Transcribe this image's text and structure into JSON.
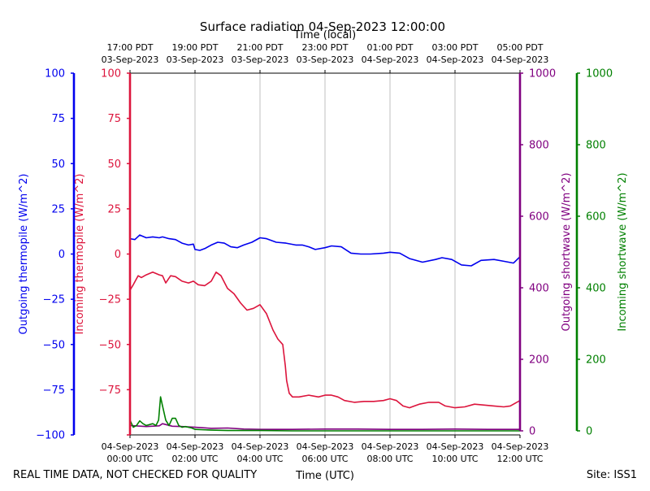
{
  "chart_data": {
    "type": "line",
    "title": "Surface radiation 04-Sep-2023 12:00:00",
    "top_xlabel": "Time (local)",
    "xlabel": "Time (UTC)",
    "footer_left": "REAL TIME DATA, NOT CHECKED FOR QUALITY",
    "footer_right": "Site: ISS1",
    "x_range_hours_utc": [
      0,
      12
    ],
    "grid": "vertical",
    "bottom_ticks": [
      {
        "h": 0,
        "line1": "04-Sep-2023",
        "line2": "00:00 UTC"
      },
      {
        "h": 2,
        "line1": "04-Sep-2023",
        "line2": "02:00 UTC"
      },
      {
        "h": 4,
        "line1": "04-Sep-2023",
        "line2": "04:00 UTC"
      },
      {
        "h": 6,
        "line1": "04-Sep-2023",
        "line2": "06:00 UTC"
      },
      {
        "h": 8,
        "line1": "04-Sep-2023",
        "line2": "08:00 UTC"
      },
      {
        "h": 10,
        "line1": "04-Sep-2023",
        "line2": "10:00 UTC"
      },
      {
        "h": 12,
        "line1": "04-Sep-2023",
        "line2": "12:00 UTC"
      }
    ],
    "top_ticks": [
      {
        "h": 0,
        "line1": "17:00 PDT",
        "line2": "03-Sep-2023"
      },
      {
        "h": 2,
        "line1": "19:00 PDT",
        "line2": "03-Sep-2023"
      },
      {
        "h": 4,
        "line1": "21:00 PDT",
        "line2": "03-Sep-2023"
      },
      {
        "h": 6,
        "line1": "23:00 PDT",
        "line2": "03-Sep-2023"
      },
      {
        "h": 8,
        "line1": "01:00 PDT",
        "line2": "04-Sep-2023"
      },
      {
        "h": 10,
        "line1": "03:00 PDT",
        "line2": "04-Sep-2023"
      },
      {
        "h": 12,
        "line1": "05:00 PDT",
        "line2": "04-Sep-2023"
      }
    ],
    "axes": [
      {
        "id": "outgoing_thermopile",
        "label": "Outgoing thermopile (W/m^2)",
        "color": "#0000ee",
        "ylim": [
          -100,
          100
        ],
        "ticks": [
          -100,
          -75,
          -50,
          -25,
          0,
          25,
          50,
          75,
          100
        ],
        "tick_labels": [
          "−100",
          "−75",
          "−50",
          "−25",
          "0",
          "25",
          "50",
          "75",
          "100"
        ]
      },
      {
        "id": "incoming_thermopile",
        "label": "Incoming thermopile (W/m^2)",
        "color": "#dc143c",
        "ylim": [
          -100,
          100
        ],
        "ticks": [
          -100,
          -75,
          -50,
          -25,
          0,
          25,
          50,
          75,
          100
        ],
        "tick_labels": [
          "",
          "−75",
          "−50",
          "−25",
          "0",
          "25",
          "50",
          "75",
          "100"
        ]
      },
      {
        "id": "outgoing_shortwave",
        "label": "Outgoing shortwave (W/m^2)",
        "color": "#800080",
        "ylim": [
          0,
          1000
        ],
        "ticks": [
          0,
          200,
          400,
          600,
          800,
          1000
        ],
        "tick_labels": [
          "0",
          "200",
          "400",
          "600",
          "800",
          "1000"
        ]
      },
      {
        "id": "incoming_shortwave",
        "label": "Incoming shortwave (W/m^2)",
        "color": "#008000",
        "ylim": [
          0,
          1000
        ],
        "ticks": [
          0,
          200,
          400,
          600,
          800,
          1000
        ],
        "tick_labels": [
          "0",
          "200",
          "400",
          "600",
          "800",
          "1000"
        ]
      }
    ],
    "series": [
      {
        "name": "Outgoing thermopile",
        "axis": "outgoing_thermopile",
        "color": "#0000ee",
        "x": [
          0,
          0.15,
          0.3,
          0.5,
          0.7,
          0.9,
          1.0,
          1.2,
          1.4,
          1.6,
          1.8,
          1.95,
          2.0,
          2.15,
          2.3,
          2.5,
          2.7,
          2.9,
          3.1,
          3.3,
          3.5,
          3.75,
          4.0,
          4.2,
          4.5,
          4.8,
          5.1,
          5.3,
          5.5,
          5.7,
          6.0,
          6.2,
          6.5,
          6.8,
          7.1,
          7.4,
          7.8,
          8.0,
          8.3,
          8.6,
          9.0,
          9.4,
          9.6,
          9.9,
          10.2,
          10.5,
          10.8,
          11.2,
          11.5,
          11.8,
          12.0
        ],
        "values": [
          8.5,
          8,
          10.5,
          9,
          9.5,
          9,
          9.5,
          8.5,
          8,
          6,
          5,
          5.5,
          2.5,
          2,
          3,
          5,
          6.5,
          6,
          4,
          3.5,
          5,
          6.5,
          9,
          8.5,
          6.5,
          6,
          5,
          5,
          4,
          2.5,
          3.5,
          4.5,
          4,
          0.5,
          0,
          0,
          0.5,
          1,
          0.5,
          -2.5,
          -4.5,
          -3,
          -2,
          -3,
          -6,
          -6.5,
          -3.5,
          -3,
          -4,
          -5,
          -1.5
        ]
      },
      {
        "name": "Incoming thermopile",
        "axis": "incoming_thermopile",
        "color": "#dc143c",
        "x": [
          0,
          0.1,
          0.25,
          0.35,
          0.5,
          0.7,
          0.9,
          1.0,
          1.1,
          1.25,
          1.4,
          1.6,
          1.8,
          1.95,
          2.1,
          2.3,
          2.5,
          2.65,
          2.8,
          3.0,
          3.2,
          3.4,
          3.6,
          3.8,
          4.0,
          4.2,
          4.4,
          4.55,
          4.7,
          4.78,
          4.82,
          4.9,
          5.0,
          5.2,
          5.5,
          5.8,
          6.0,
          6.2,
          6.4,
          6.6,
          6.9,
          7.2,
          7.5,
          7.8,
          8.0,
          8.2,
          8.4,
          8.6,
          8.9,
          9.2,
          9.5,
          9.7,
          10.0,
          10.3,
          10.6,
          10.9,
          11.2,
          11.5,
          11.7,
          12.0
        ],
        "values": [
          -20,
          -17,
          -12,
          -13,
          -11.5,
          -10,
          -11.5,
          -12,
          -16,
          -12,
          -12.5,
          -15,
          -16,
          -15,
          -17,
          -17.5,
          -15,
          -10,
          -12,
          -19,
          -22,
          -27,
          -31,
          -30,
          -28,
          -33,
          -42,
          -47,
          -50,
          -62,
          -70,
          -77,
          -79,
          -79,
          -78,
          -79,
          -78,
          -78,
          -79,
          -81,
          -82,
          -81.5,
          -81.5,
          -81,
          -80,
          -81,
          -84,
          -85,
          -83,
          -82,
          -82,
          -84,
          -85,
          -84.5,
          -83,
          -83.5,
          -84,
          -84.5,
          -84,
          -81
        ]
      },
      {
        "name": "Outgoing shortwave",
        "axis": "outgoing_shortwave",
        "color": "#800080",
        "x": [
          0,
          0.5,
          0.9,
          1.0,
          1.3,
          1.6,
          2.0,
          2.5,
          3.0,
          3.5,
          4.0,
          5.0,
          6.0,
          7.0,
          8.0,
          9.0,
          10.0,
          11.0,
          12.0
        ],
        "values": [
          15,
          12,
          14,
          20,
          13,
          12,
          10,
          7,
          8,
          5,
          4,
          4,
          5,
          5,
          4,
          4,
          5,
          4,
          4
        ]
      },
      {
        "name": "Incoming shortwave",
        "axis": "incoming_shortwave",
        "color": "#008000",
        "x": [
          0,
          0.1,
          0.2,
          0.3,
          0.4,
          0.5,
          0.7,
          0.8,
          0.88,
          0.94,
          1.0,
          1.1,
          1.2,
          1.3,
          1.4,
          1.5,
          1.6,
          1.7,
          1.9,
          2.0,
          2.5,
          3.0,
          4.0,
          5.0,
          6.0,
          7.0,
          8.0,
          9.0,
          10.0,
          11.0,
          12.0
        ],
        "values": [
          30,
          10,
          15,
          28,
          20,
          15,
          20,
          15,
          30,
          95,
          70,
          30,
          15,
          35,
          35,
          15,
          10,
          12,
          8,
          4,
          2,
          1,
          1,
          0,
          0,
          0,
          0,
          0,
          0,
          0,
          0
        ]
      }
    ]
  }
}
